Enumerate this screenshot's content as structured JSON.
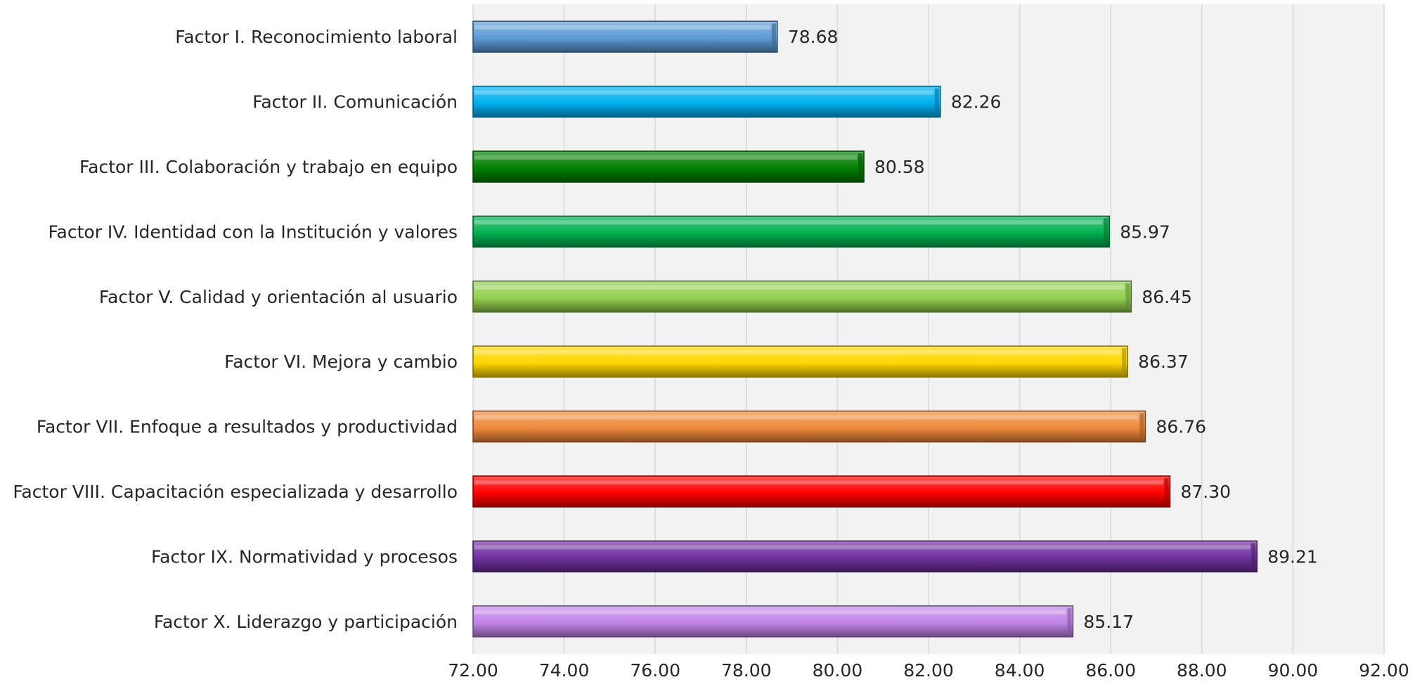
{
  "chart_data": {
    "type": "bar",
    "orientation": "horizontal",
    "title": "",
    "xlabel": "",
    "ylabel": "",
    "xlim": [
      72,
      92
    ],
    "x_tick_step": 2,
    "x_tick_labels": [
      "72.00",
      "74.00",
      "76.00",
      "78.00",
      "80.00",
      "82.00",
      "84.00",
      "86.00",
      "88.00",
      "90.00",
      "92.00"
    ],
    "grid": "vertical",
    "legend": "none",
    "categories": [
      "Factor I. Reconocimiento laboral",
      "Factor II. Comunicación",
      "Factor III. Colaboración y trabajo en equipo",
      "Factor IV. Identidad con la Institución y valores",
      "Factor V. Calidad y orientación al usuario",
      "Factor VI. Mejora y cambio",
      "Factor VII. Enfoque a resultados y productividad",
      "Factor VIII. Capacitación especializada y desarrollo",
      "Factor IX. Normatividad y procesos",
      "Factor X. Liderazgo y participación"
    ],
    "values": [
      78.68,
      82.26,
      80.58,
      85.97,
      86.45,
      86.37,
      86.76,
      87.3,
      89.21,
      85.17
    ],
    "value_labels": [
      "78.68",
      "82.26",
      "80.58",
      "85.97",
      "86.45",
      "86.37",
      "86.76",
      "87.30",
      "89.21",
      "85.17"
    ],
    "colors": [
      "#5B9BD5",
      "#00B0F0",
      "#008000",
      "#00B050",
      "#92D050",
      "#FFD700",
      "#F0883C",
      "#FF0000",
      "#7030A0",
      "#C285E8"
    ]
  }
}
